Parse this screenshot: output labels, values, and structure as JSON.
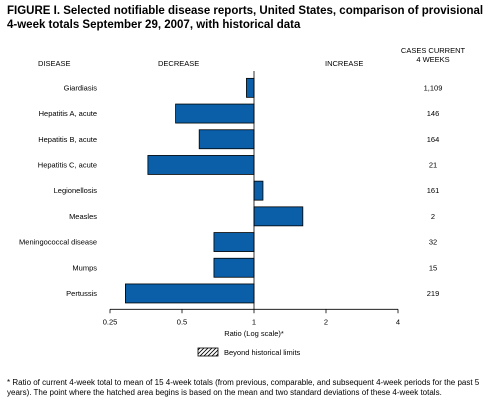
{
  "title": "FIGURE I. Selected notifiable disease reports, United States, comparison of provisional 4-week totals September 29, 2007, with historical data",
  "footnote": "* Ratio of current 4-week total to mean of 15 4-week totals (from previous, comparable, and subsequent 4-week periods for the past 5 years). The point where the hatched area begins is based on the mean and two standard deviations of these 4-week totals.",
  "chart_data": {
    "type": "bar",
    "orientation": "horizontal",
    "scale": "log",
    "xlabel": "Ratio (Log scale)*",
    "xlim": [
      0.25,
      4
    ],
    "xticks": [
      0.25,
      0.5,
      1,
      2,
      4
    ],
    "xtick_labels": [
      "0.25",
      "0.5",
      "1",
      "2",
      "4"
    ],
    "reference_line": 1,
    "headers": {
      "disease": "DISEASE",
      "decrease": "DECREASE",
      "increase": "INCREASE",
      "cases_line1": "CASES CURRENT",
      "cases_line2": "4 WEEKS"
    },
    "categories": [
      "Giardiasis",
      "Hepatitis A, acute",
      "Hepatitis B, acute",
      "Hepatitis C, acute",
      "Legionellosis",
      "Measles",
      "Meningococcal disease",
      "Mumps",
      "Pertussis"
    ],
    "values": [
      0.93,
      0.47,
      0.59,
      0.36,
      1.09,
      1.6,
      0.68,
      0.68,
      0.29
    ],
    "cases": [
      "1,109",
      "146",
      "164",
      "21",
      "161",
      "2",
      "32",
      "15",
      "219"
    ],
    "legend": {
      "label": "Beyond historical limits",
      "placement": "bottom-center"
    },
    "colors": {
      "bar": "#0a5fa8",
      "bar_stroke": "#000000"
    }
  }
}
